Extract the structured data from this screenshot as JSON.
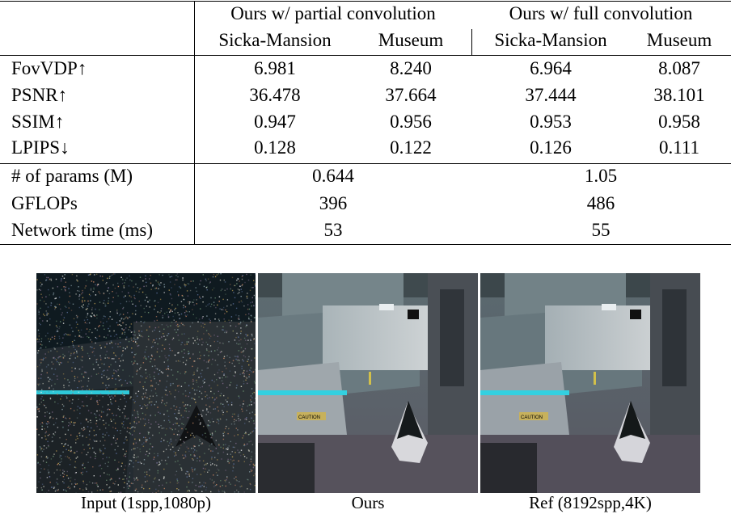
{
  "table": {
    "group_headers": [
      "Ours w/ partial convolution",
      "Ours w/ full convolution"
    ],
    "sub_headers": [
      "Sicka-Mansion",
      "Museum",
      "Sicka-Mansion",
      "Museum"
    ],
    "metric_rows": [
      {
        "label": "FovVDP↑",
        "values": [
          "6.981",
          "8.240",
          "6.964",
          "8.087"
        ]
      },
      {
        "label": "PSNR↑",
        "values": [
          "36.478",
          "37.664",
          "37.444",
          "38.101"
        ]
      },
      {
        "label": "SSIM↑",
        "values": [
          "0.947",
          "0.956",
          "0.953",
          "0.958"
        ]
      },
      {
        "label": "LPIPS↓",
        "values": [
          "0.128",
          "0.122",
          "0.126",
          "0.111"
        ]
      }
    ],
    "cost_rows": [
      {
        "label": "# of params (M)",
        "values": [
          "0.644",
          "1.05"
        ]
      },
      {
        "label": "GFLOPs",
        "values": [
          "396",
          "486"
        ]
      },
      {
        "label": "Network time (ms)",
        "values": [
          "53",
          "55"
        ]
      }
    ]
  },
  "figure": {
    "captions": [
      "Input (1spp,1080p)",
      "Ours",
      "Ref (8192spp,4K)"
    ],
    "sign_text": "CAUTION"
  }
}
